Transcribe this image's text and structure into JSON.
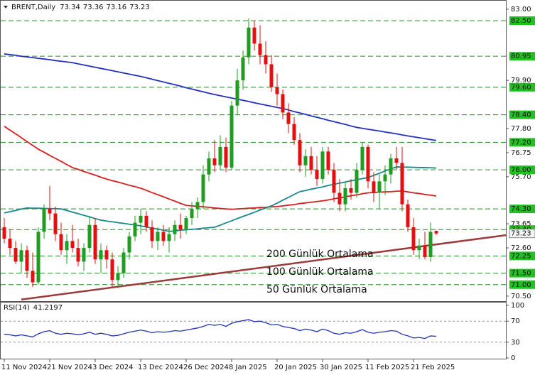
{
  "chart_data": [
    {
      "type": "candlestick",
      "symbol": "BRENT,Daily",
      "categories": [
        "11 Nov 2024",
        null,
        null,
        null,
        null,
        null,
        null,
        null,
        "21 Nov 2024",
        null,
        null,
        null,
        null,
        null,
        null,
        null,
        "3 Dec 2024",
        null,
        null,
        null,
        null,
        null,
        null,
        null,
        "13 Dec 2024",
        null,
        null,
        null,
        null,
        null,
        null,
        null,
        "26 Dec 2024",
        null,
        null,
        null,
        null,
        null,
        null,
        null,
        "8 Jan 2025",
        null,
        null,
        null,
        null,
        null,
        null,
        null,
        "20 Jan 2025",
        null,
        null,
        null,
        null,
        null,
        null,
        null,
        "30 Jan 2025",
        null,
        null,
        null,
        null,
        null,
        null,
        null,
        "11 Feb 2025",
        null,
        null,
        null,
        null,
        null,
        null,
        null,
        "21 Feb 2025",
        null,
        null,
        null,
        null
      ],
      "open": [
        73.5,
        73.0,
        72.6,
        72.0,
        72.5,
        71.6,
        71.1,
        73.3,
        74.3,
        74.1,
        73.2,
        72.5,
        72.9,
        72.6,
        72.0,
        72.6,
        73.6,
        72.1,
        72.5,
        72.1,
        71.2,
        71.5,
        72.4,
        73.1,
        73.7,
        74.0,
        73.5,
        72.9,
        73.3,
        72.9,
        73.2,
        73.6,
        73.4,
        73.9,
        74.3,
        74.6,
        75.8,
        76.5,
        76.2,
        77.0,
        76.1,
        78.8,
        79.9,
        80.9,
        82.2,
        81.5,
        81.0,
        80.6,
        79.6,
        79.3,
        78.5,
        78.0,
        77.3,
        76.2,
        76.6,
        76.0,
        75.6,
        76.8,
        76.0,
        75.0,
        74.5,
        75.2,
        75.0,
        76.0,
        77.0,
        75.5,
        75.0,
        75.5,
        75.8,
        76.5,
        76.3,
        74.5,
        73.5,
        72.5,
        72.7,
        72.2,
        73.34
      ],
      "high": [
        73.9,
        73.4,
        72.9,
        72.8,
        72.7,
        72.4,
        73.5,
        74.5,
        75.3,
        74.4,
        73.7,
        73.2,
        73.6,
        73.0,
        72.8,
        74.0,
        73.9,
        72.8,
        72.7,
        72.4,
        71.8,
        72.6,
        73.3,
        74.0,
        74.3,
        74.2,
        73.8,
        73.5,
        73.6,
        73.5,
        73.8,
        74.1,
        74.0,
        74.6,
        74.8,
        76.2,
        76.8,
        77.3,
        77.5,
        77.4,
        79.0,
        80.4,
        81.2,
        82.6,
        82.5,
        82.3,
        81.6,
        81.0,
        80.2,
        79.5,
        78.9,
        78.3,
        77.6,
        76.9,
        77.0,
        76.6,
        77.0,
        77.0,
        76.3,
        75.6,
        75.5,
        75.6,
        76.3,
        77.2,
        77.1,
        75.9,
        75.8,
        76.2,
        76.7,
        77.0,
        77.0,
        74.7,
        73.9,
        73.0,
        73.3,
        73.7,
        73.36
      ],
      "low": [
        72.8,
        72.3,
        71.9,
        71.5,
        71.3,
        70.9,
        71.0,
        73.0,
        73.8,
        72.9,
        72.3,
        71.9,
        72.4,
        71.8,
        71.6,
        72.4,
        71.9,
        71.5,
        71.7,
        70.9,
        70.9,
        71.3,
        72.1,
        72.9,
        73.2,
        73.3,
        72.6,
        72.5,
        72.7,
        72.4,
        72.9,
        73.0,
        73.2,
        73.6,
        73.9,
        74.3,
        75.5,
        75.9,
        76.0,
        75.9,
        76.0,
        78.4,
        79.5,
        80.6,
        81.2,
        80.6,
        80.2,
        79.4,
        78.8,
        78.2,
        77.6,
        77.1,
        75.9,
        75.7,
        75.8,
        75.3,
        75.4,
        75.8,
        74.6,
        74.2,
        74.2,
        74.7,
        74.8,
        75.8,
        75.2,
        74.6,
        74.3,
        74.9,
        75.4,
        76.0,
        74.2,
        73.3,
        72.3,
        72.1,
        72.1,
        72.0,
        73.16
      ],
      "close": [
        73.0,
        72.6,
        72.0,
        72.5,
        71.6,
        71.1,
        73.3,
        74.3,
        74.1,
        73.2,
        72.5,
        72.9,
        72.6,
        72.0,
        72.6,
        73.6,
        72.1,
        72.5,
        72.1,
        71.2,
        71.5,
        72.4,
        73.1,
        73.7,
        74.0,
        73.5,
        72.9,
        73.3,
        72.9,
        73.2,
        73.6,
        73.4,
        73.9,
        74.3,
        74.6,
        75.8,
        76.5,
        76.2,
        77.0,
        76.1,
        78.8,
        79.9,
        80.9,
        82.2,
        81.5,
        81.0,
        80.6,
        79.6,
        79.3,
        78.5,
        78.0,
        77.3,
        76.2,
        76.6,
        76.0,
        75.6,
        76.8,
        76.0,
        75.0,
        74.5,
        75.2,
        75.0,
        76.0,
        77.0,
        75.5,
        75.0,
        75.5,
        75.8,
        76.5,
        76.3,
        74.5,
        73.5,
        72.5,
        72.7,
        72.2,
        73.3,
        73.23
      ],
      "up_color": "#1e9e1e",
      "down_color": "#e31010",
      "series": [
        {
          "name": "200 Günlük Ortalama",
          "color": "#2230c0",
          "values": [
            81.05,
            81.02,
            80.99,
            80.95,
            80.92,
            80.89,
            80.86,
            80.83,
            80.8,
            80.76,
            80.73,
            80.7,
            80.67,
            80.62,
            80.57,
            80.52,
            80.47,
            80.42,
            80.37,
            80.32,
            80.27,
            80.22,
            80.17,
            80.12,
            80.07,
            80.01,
            79.95,
            79.89,
            79.83,
            79.77,
            79.71,
            79.65,
            79.58,
            79.52,
            79.46,
            79.4,
            79.34,
            79.28,
            79.23,
            79.18,
            79.13,
            79.08,
            79.03,
            78.98,
            78.92,
            78.87,
            78.82,
            78.77,
            78.72,
            78.67,
            78.61,
            78.54,
            78.48,
            78.42,
            78.35,
            78.29,
            78.23,
            78.16,
            78.1,
            78.04,
            77.98,
            77.91,
            77.85,
            77.81,
            77.77,
            77.73,
            77.69,
            77.65,
            77.61,
            77.57,
            77.52,
            77.48,
            77.44,
            77.4,
            77.36,
            77.32,
            77.28
          ]
        },
        {
          "name": "100 Günlük Ortalama",
          "color": "#d81e1e",
          "values": [
            77.9,
            77.73,
            77.57,
            77.4,
            77.23,
            77.07,
            76.9,
            76.77,
            76.63,
            76.5,
            76.37,
            76.23,
            76.1,
            76.02,
            75.93,
            75.85,
            75.77,
            75.68,
            75.6,
            75.53,
            75.47,
            75.4,
            75.33,
            75.27,
            75.2,
            75.11,
            75.01,
            74.92,
            74.83,
            74.73,
            74.64,
            74.54,
            74.45,
            74.43,
            74.41,
            74.39,
            74.37,
            74.34,
            74.32,
            74.3,
            74.28,
            74.3,
            74.31,
            74.33,
            74.34,
            74.36,
            74.37,
            74.39,
            74.4,
            74.43,
            74.46,
            74.49,
            74.53,
            74.56,
            74.59,
            74.62,
            74.65,
            74.69,
            74.74,
            74.78,
            74.83,
            74.87,
            74.91,
            74.96,
            75.0,
            75.01,
            75.03,
            75.04,
            75.05,
            75.07,
            75.08,
            75.04,
            75.0,
            74.97,
            74.93,
            74.9,
            74.86
          ]
        },
        {
          "name": "50 Günlük Ortalama",
          "color": "#17888c",
          "values": [
            74.12,
            74.18,
            74.23,
            74.29,
            74.34,
            74.33,
            74.33,
            74.32,
            74.31,
            74.31,
            74.3,
            74.23,
            74.16,
            74.09,
            74.02,
            73.95,
            73.88,
            73.81,
            73.77,
            73.74,
            73.7,
            73.67,
            73.63,
            73.6,
            73.56,
            73.51,
            73.46,
            73.42,
            73.37,
            73.32,
            73.34,
            73.37,
            73.39,
            73.41,
            73.43,
            73.46,
            73.48,
            73.5,
            73.59,
            73.69,
            73.78,
            73.88,
            73.97,
            74.06,
            74.15,
            74.25,
            74.34,
            74.43,
            74.55,
            74.68,
            74.8,
            74.93,
            75.05,
            75.1,
            75.16,
            75.21,
            75.26,
            75.32,
            75.37,
            75.42,
            75.47,
            75.52,
            75.57,
            75.62,
            75.67,
            75.76,
            75.85,
            75.95,
            76.04,
            76.13,
            76.12,
            76.12,
            76.11,
            76.1,
            76.1,
            76.09,
            76.08
          ]
        }
      ],
      "ylim": [
        70.25,
        83.4
      ],
      "yticks": [
        {
          "value": 83,
          "label": "83.00"
        },
        {
          "value": 79.9,
          "label": "79.90"
        },
        {
          "value": 77.8,
          "label": "77.80"
        },
        {
          "value": 76.75,
          "label": "76.75"
        },
        {
          "value": 75.7,
          "label": "75.70"
        },
        {
          "value": 73.65,
          "label": "73.65"
        },
        {
          "value": 72.6,
          "label": "72.60"
        },
        {
          "value": 70.5,
          "label": "70.50"
        }
      ],
      "levels": [
        {
          "value": 82.5,
          "label": "82.50"
        },
        {
          "value": 80.95,
          "label": "80.95"
        },
        {
          "value": 79.6,
          "label": "79.60"
        },
        {
          "value": 78.4,
          "label": "78.40"
        },
        {
          "value": 77.2,
          "label": "77.20"
        },
        {
          "value": 76,
          "label": "76.00"
        },
        {
          "value": 74.3,
          "label": "74.30"
        },
        {
          "value": 73.4,
          "label": "73.40"
        },
        {
          "value": 72.25,
          "label": "72.25"
        },
        {
          "value": 71.5,
          "label": "71.50"
        },
        {
          "value": 71,
          "label": "71.00"
        }
      ],
      "level_color": "#1f8f1f",
      "trendline": {
        "color": "#9c3b3b",
        "y": [
          70.35,
          73.16
        ]
      }
    },
    {
      "type": "line",
      "series": [
        {
          "name": "RSI(14)",
          "color": "#2233bb",
          "values": [
            45,
            44,
            42,
            44,
            42,
            40,
            46,
            50,
            52,
            47,
            45,
            47,
            46,
            44,
            46,
            49,
            45,
            47,
            45,
            42,
            43,
            46,
            49,
            51,
            53,
            51,
            48,
            50,
            49,
            50,
            52,
            51,
            53,
            55,
            57,
            60,
            64,
            62,
            64,
            60,
            66,
            69,
            71,
            73,
            69,
            70,
            67,
            63,
            64,
            60,
            58,
            56,
            52,
            55,
            53,
            50,
            55,
            52,
            47,
            45,
            48,
            47,
            50,
            54,
            49,
            47,
            49,
            50,
            52,
            51,
            45,
            42,
            38,
            39,
            37,
            42,
            41.2197
          ]
        }
      ],
      "ylim": [
        0,
        100
      ],
      "yticks": [
        100,
        70,
        30,
        0
      ],
      "levels": [
        70,
        30
      ]
    }
  ]
}
